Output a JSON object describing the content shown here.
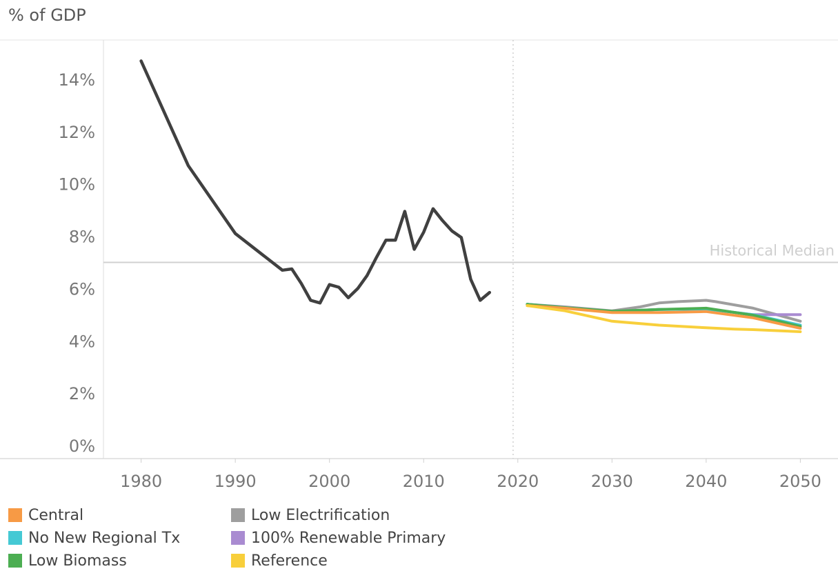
{
  "chart_data": {
    "type": "line",
    "ylabel": "% of GDP",
    "xlabel": "",
    "xlim": [
      1976,
      2054
    ],
    "ylim": [
      -0.5,
      15.5
    ],
    "x_ticks": [
      1980,
      1990,
      2000,
      2010,
      2020,
      2030,
      2040,
      2050
    ],
    "x_tick_labels": [
      "1980",
      "1990",
      "2000",
      "2010",
      "2020",
      "2030",
      "2040",
      "2050"
    ],
    "y_ticks": [
      0,
      2,
      4,
      6,
      8,
      10,
      12,
      14
    ],
    "y_tick_labels": [
      "0%",
      "2%",
      "4%",
      "6%",
      "8%",
      "10%",
      "12%",
      "14%"
    ],
    "reference_lines": [
      {
        "label": "Historical Median",
        "y": 7.0,
        "orientation": "horizontal",
        "color": "#d0d0d0"
      },
      {
        "label": "",
        "x": 2019.5,
        "orientation": "vertical",
        "style": "dotted",
        "color": "#cfcfcf"
      }
    ],
    "grid": false,
    "legend_position": "bottom",
    "series": [
      {
        "name": "",
        "color": "#404040",
        "x": [
          1980,
          1985,
          1990,
          1995,
          1996,
          1997,
          1998,
          1999,
          2000,
          2001,
          2002,
          2003,
          2004,
          2005,
          2006,
          2007,
          2008,
          2009,
          2010,
          2011,
          2012,
          2013,
          2014,
          2015,
          2016,
          2017
        ],
        "y": [
          14.7,
          10.7,
          8.1,
          6.7,
          6.75,
          6.2,
          5.55,
          5.45,
          6.15,
          6.05,
          5.65,
          6.0,
          6.5,
          7.2,
          7.85,
          7.85,
          8.95,
          7.5,
          8.15,
          9.05,
          8.6,
          8.2,
          7.95,
          6.35,
          5.55,
          5.85
        ]
      },
      {
        "name": "Low Electrification",
        "color": "#9e9e9e",
        "x": [
          2021,
          2025,
          2030,
          2033,
          2035,
          2037,
          2040,
          2041,
          2045,
          2050
        ],
        "y": [
          5.4,
          5.3,
          5.15,
          5.3,
          5.45,
          5.5,
          5.55,
          5.5,
          5.25,
          4.75
        ]
      },
      {
        "name": "100% Renewable Primary",
        "color": "#a98bd1",
        "x": [
          2021,
          2025,
          2030,
          2035,
          2040,
          2045,
          2050
        ],
        "y": [
          5.4,
          5.28,
          5.12,
          5.2,
          5.22,
          5.0,
          5.0
        ]
      },
      {
        "name": "No New Regional Tx",
        "color": "#45c9d4",
        "x": [
          2021,
          2025,
          2030,
          2035,
          2040,
          2045,
          2050
        ],
        "y": [
          5.4,
          5.27,
          5.12,
          5.2,
          5.22,
          5.0,
          4.6
        ]
      },
      {
        "name": "Low Biomass",
        "color": "#4cae52",
        "x": [
          2021,
          2025,
          2030,
          2035,
          2040,
          2045,
          2050
        ],
        "y": [
          5.4,
          5.27,
          5.13,
          5.2,
          5.25,
          4.98,
          4.55
        ]
      },
      {
        "name": "Central",
        "color": "#f79a45",
        "x": [
          2021,
          2025,
          2030,
          2035,
          2040,
          2045,
          2050
        ],
        "y": [
          5.35,
          5.25,
          5.08,
          5.08,
          5.12,
          4.88,
          4.48
        ]
      },
      {
        "name": "Reference",
        "color": "#f8cf3b",
        "x": [
          2021,
          2025,
          2030,
          2035,
          2040,
          2043,
          2045,
          2050
        ],
        "y": [
          5.35,
          5.15,
          4.75,
          4.6,
          4.5,
          4.45,
          4.43,
          4.35
        ]
      }
    ],
    "legend": [
      {
        "name": "Central",
        "color": "#f79a45"
      },
      {
        "name": "No New Regional Tx",
        "color": "#45c9d4"
      },
      {
        "name": "Low Biomass",
        "color": "#4cae52"
      },
      {
        "name": "Low Electrification",
        "color": "#9e9e9e"
      },
      {
        "name": "100% Renewable Primary",
        "color": "#a98bd1"
      },
      {
        "name": "Reference",
        "color": "#f8cf3b"
      }
    ]
  }
}
